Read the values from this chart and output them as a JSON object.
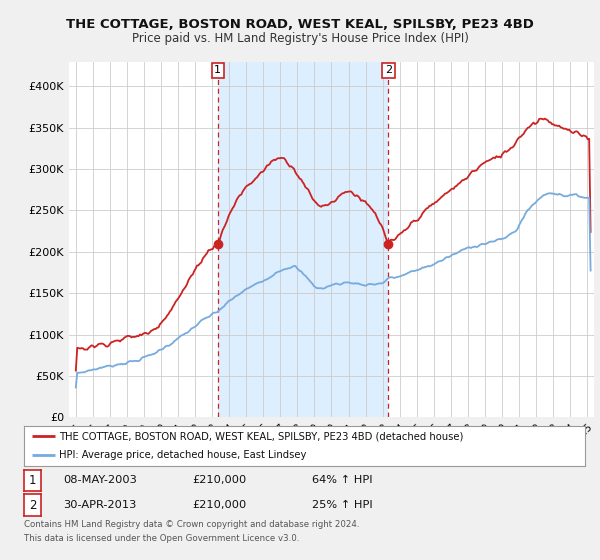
{
  "title": "THE COTTAGE, BOSTON ROAD, WEST KEAL, SPILSBY, PE23 4BD",
  "subtitle": "Price paid vs. HM Land Registry's House Price Index (HPI)",
  "legend_line1": "THE COTTAGE, BOSTON ROAD, WEST KEAL, SPILSBY, PE23 4BD (detached house)",
  "legend_line2": "HPI: Average price, detached house, East Lindsey",
  "annotation1_label": "1",
  "annotation1_date": "08-MAY-2003",
  "annotation1_value": 210000,
  "annotation1_pct": "64% ↑ HPI",
  "annotation2_label": "2",
  "annotation2_date": "30-APR-2013",
  "annotation2_value": 210000,
  "annotation2_pct": "25% ↑ HPI",
  "footnote1": "Contains HM Land Registry data © Crown copyright and database right 2024.",
  "footnote2": "This data is licensed under the Open Government Licence v3.0.",
  "red_color": "#cc2222",
  "blue_color": "#77aadd",
  "background_color": "#f0f0f0",
  "plot_bg_color": "#ffffff",
  "shade_color": "#ddeeff",
  "annotation_box_color": "#cc2222",
  "ann1_x": 2003.33,
  "ann2_x": 2013.33,
  "ylim": [
    0,
    430000
  ],
  "yticks": [
    0,
    50000,
    100000,
    150000,
    200000,
    250000,
    300000,
    350000,
    400000
  ],
  "ytick_labels": [
    "£0",
    "£50K",
    "£100K",
    "£150K",
    "£200K",
    "£250K",
    "£300K",
    "£350K",
    "£400K"
  ],
  "xlim_left": 1994.6,
  "xlim_right": 2025.4
}
